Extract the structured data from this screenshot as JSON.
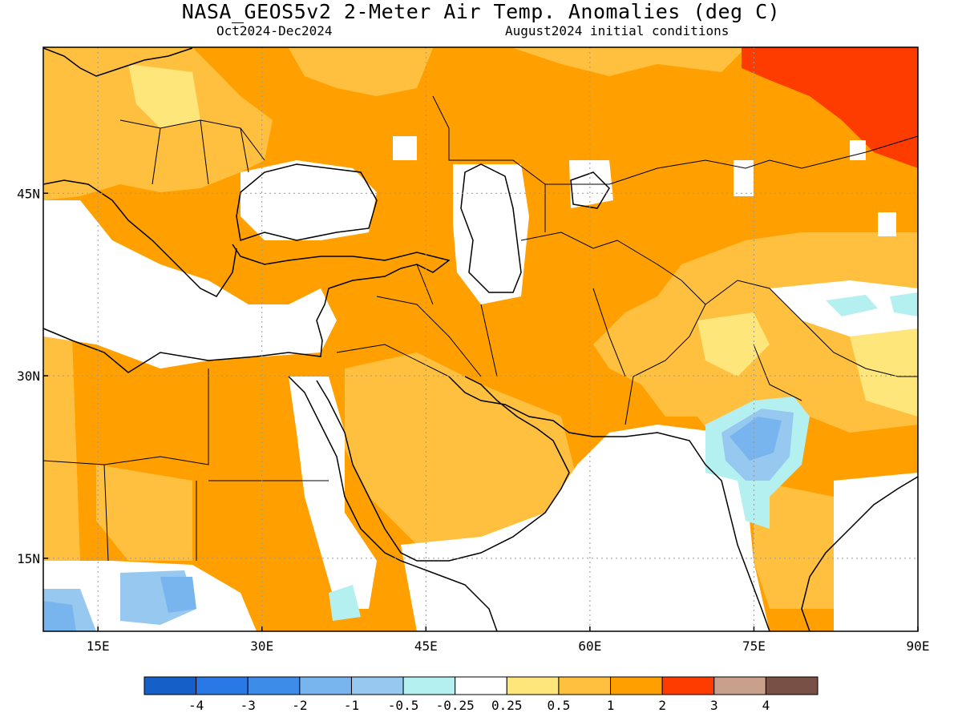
{
  "title": "NASA_GEOS5v2 2-Meter Air Temp. Anomalies (deg C)",
  "subtitle_left": "Oct2024-Dec2024",
  "subtitle_right": "August2024 initial conditions",
  "map": {
    "lon_range": [
      10,
      90
    ],
    "lat_range": [
      9,
      57
    ],
    "lon_ticks": [
      "15E",
      "30E",
      "45E",
      "60E",
      "75E",
      "90E"
    ],
    "lon_tick_values": [
      15,
      30,
      45,
      60,
      75,
      90
    ],
    "lat_ticks": [
      "15N",
      "30N",
      "45N"
    ],
    "lat_tick_values": [
      15,
      30,
      45
    ],
    "grid": "dotted"
  },
  "colorbar": {
    "labels": [
      "-4",
      "-3",
      "-2",
      "-1",
      "-0.5",
      "-0.25",
      "0.25",
      "0.5",
      "1",
      "2",
      "3",
      "4"
    ],
    "colors": [
      "#1560c8",
      "#2878e6",
      "#3c8ce8",
      "#78b4ee",
      "#96c8f0",
      "#b4f0f0",
      "#ffffff",
      "#ffe67a",
      "#ffc040",
      "#ffa000",
      "#ff3c00",
      "#c8a08c",
      "#785046"
    ]
  }
}
